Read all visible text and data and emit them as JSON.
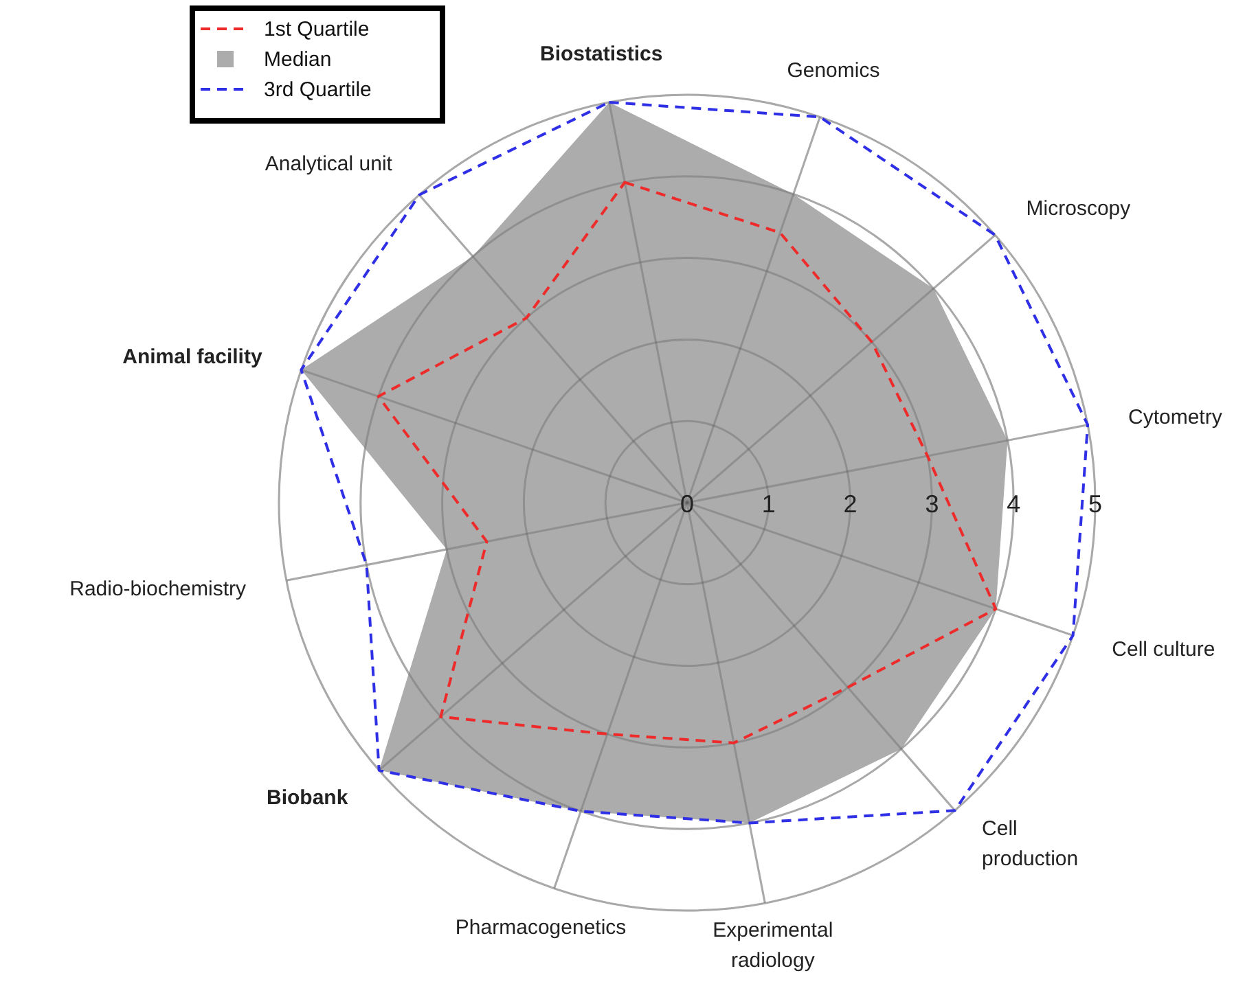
{
  "chart_data": {
    "type": "radar",
    "categories": [
      "Biostatistics",
      "Genomics",
      "Microscopy",
      "Cytometry",
      "Cell culture",
      "Cell production",
      "Experimental radiology",
      "Pharmacogenetics",
      "Biobank",
      "Radio-biochemistry",
      "Animal facility",
      "Analytical unit"
    ],
    "series": [
      {
        "name": "Median",
        "color": "#acacac",
        "values": [
          5,
          4,
          4,
          4,
          4,
          4,
          4,
          4,
          5,
          3,
          5,
          4
        ]
      },
      {
        "name": "1st Quartile",
        "line_style": "dashed",
        "color": "#ee2b2b",
        "values": [
          4,
          3.5,
          3,
          3,
          4,
          3,
          3,
          3,
          4,
          2.5,
          4,
          3
        ]
      },
      {
        "name": "3rd Quartile",
        "line_style": "dashed",
        "color": "#2f2fe6",
        "values": [
          5,
          5,
          5,
          5,
          5,
          5,
          4,
          4,
          5,
          4,
          5,
          5
        ]
      }
    ],
    "ylim": [
      0,
      5
    ],
    "yticks": [
      0,
      1,
      2,
      3,
      4,
      5
    ],
    "grid": true,
    "legend": "top left"
  }
}
